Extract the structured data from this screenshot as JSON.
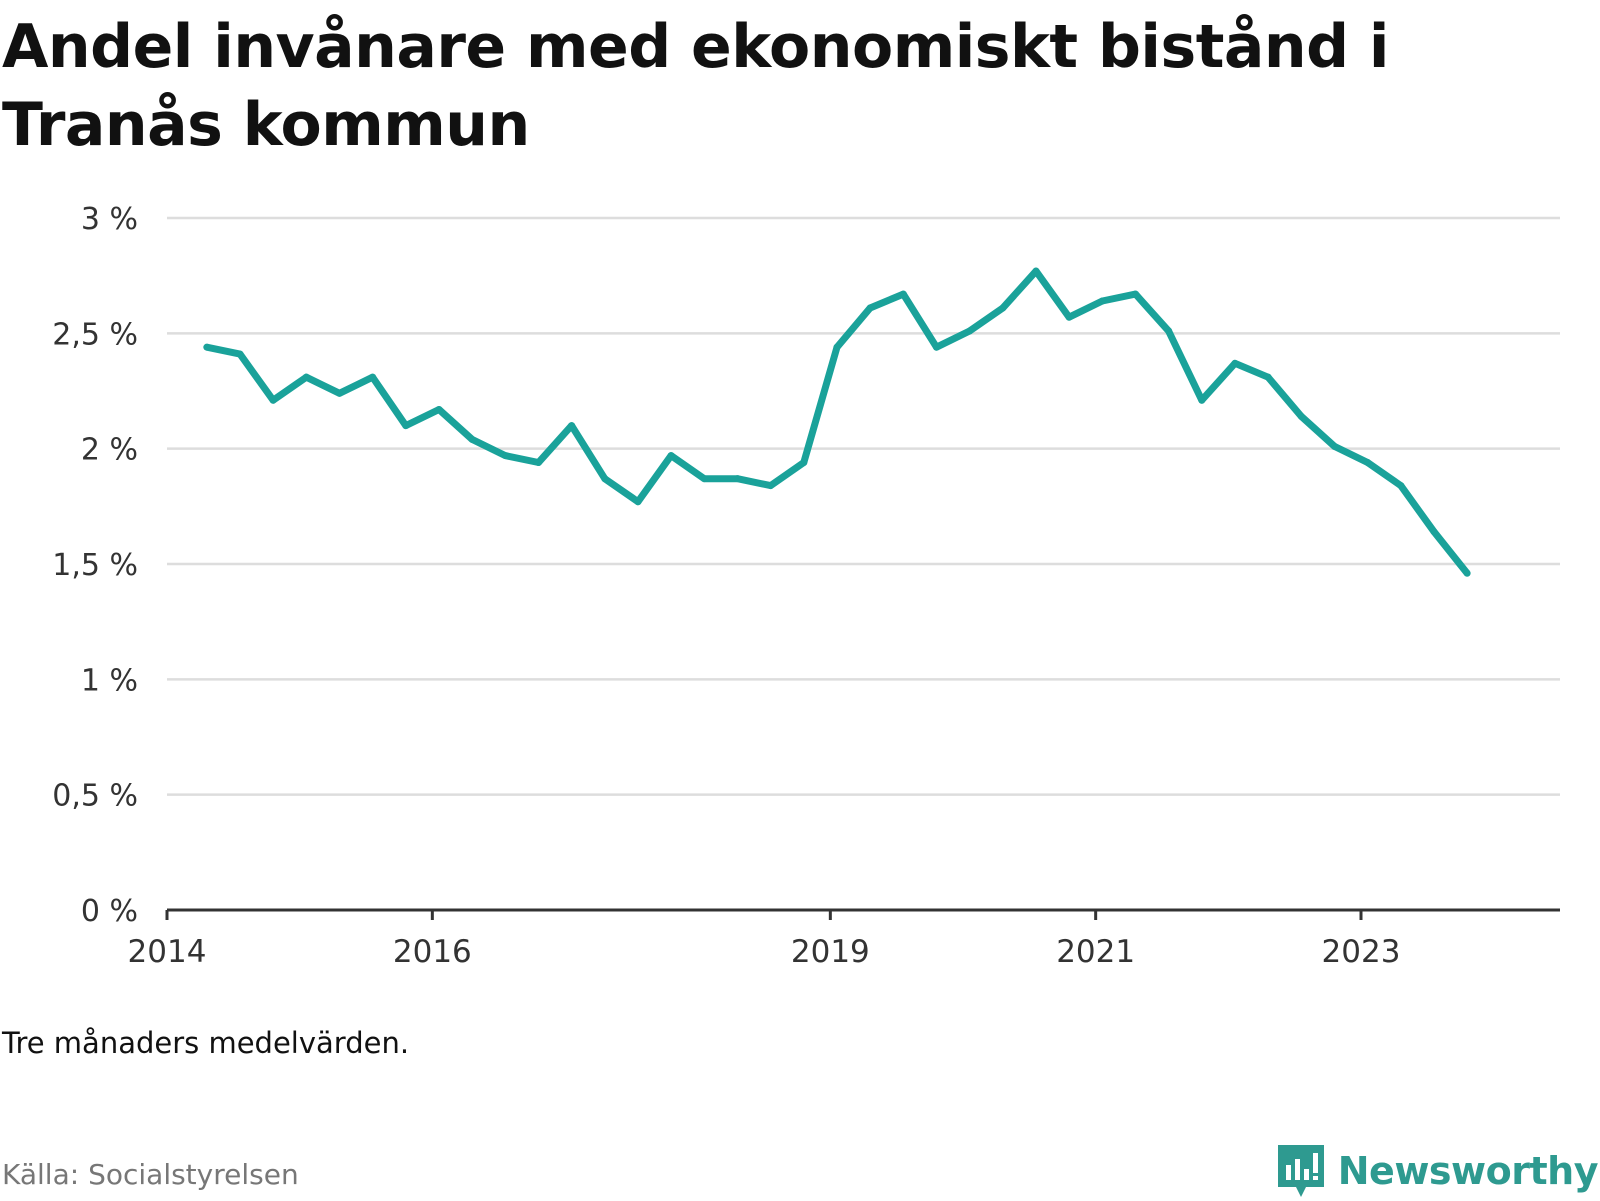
{
  "title": "Andel invånare med ekonomiskt bistånd i Tranås kommun",
  "note": "Tre månaders medelvärden.",
  "source": "Källa: Socialstyrelsen",
  "brand": {
    "name": "Newsworthy",
    "color": "#2e9a90",
    "icon": "newsworthy-logo-icon"
  },
  "colors": {
    "line": "#1aa29a",
    "grid": "#dddddd",
    "axis": "#333333"
  },
  "chart_data": {
    "type": "line",
    "title": "Andel invånare med ekonomiskt bistånd i Tranås kommun",
    "xlabel": "",
    "ylabel": "",
    "xlim": [
      2014.0,
      2024.5
    ],
    "ylim": [
      0,
      3
    ],
    "y_ticks": [
      {
        "value": 0,
        "label": "0 %"
      },
      {
        "value": 0.5,
        "label": "0,5 %"
      },
      {
        "value": 1,
        "label": "1 %"
      },
      {
        "value": 1.5,
        "label": "1,5 %"
      },
      {
        "value": 2,
        "label": "2 %"
      },
      {
        "value": 2.5,
        "label": "2,5 %"
      },
      {
        "value": 3,
        "label": "3 %"
      }
    ],
    "x_ticks": [
      {
        "value": 2014,
        "label": "2014"
      },
      {
        "value": 2016,
        "label": "2016"
      },
      {
        "value": 2019,
        "label": "2019"
      },
      {
        "value": 2021,
        "label": "2021"
      },
      {
        "value": 2023,
        "label": "2023"
      }
    ],
    "grid": true,
    "series": [
      {
        "name": "Andel invånare med ekonomiskt bistånd",
        "x": [
          2014.3,
          2014.55,
          2014.8,
          2015.05,
          2015.3,
          2015.55,
          2015.8,
          2016.05,
          2016.3,
          2016.55,
          2016.8,
          2017.05,
          2017.3,
          2017.55,
          2017.8,
          2018.05,
          2018.3,
          2018.55,
          2018.8,
          2019.05,
          2019.3,
          2019.55,
          2019.8,
          2020.05,
          2020.3,
          2020.55,
          2020.8,
          2021.05,
          2021.3,
          2021.55,
          2021.8,
          2022.05,
          2022.3,
          2022.55,
          2022.8,
          2023.05,
          2023.3,
          2023.55,
          2023.8
        ],
        "values": [
          2.44,
          2.41,
          2.21,
          2.31,
          2.24,
          2.31,
          2.1,
          2.17,
          2.04,
          1.97,
          1.94,
          2.1,
          1.87,
          1.77,
          1.97,
          1.87,
          1.87,
          1.84,
          1.94,
          2.44,
          2.61,
          2.67,
          2.44,
          2.51,
          2.61,
          2.77,
          2.57,
          2.64,
          2.67,
          2.51,
          2.21,
          2.37,
          2.31,
          2.14,
          2.01,
          1.94,
          1.84,
          1.64,
          1.46
        ]
      }
    ]
  }
}
